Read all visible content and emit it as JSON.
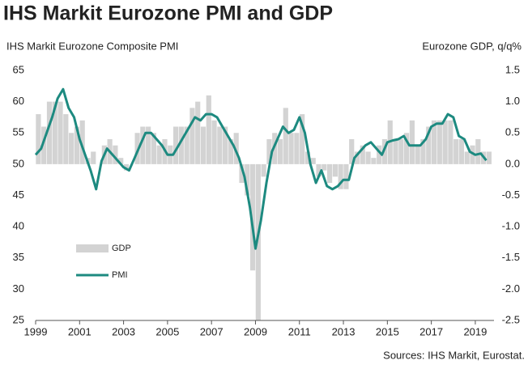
{
  "chart_data": {
    "type": "bar-line",
    "title": "IHS Markit Eurozone PMI and GDP",
    "ylabel": "IHS Markit Eurozone Composite PMI",
    "y2label": "Eurozone GDP, q/q%",
    "source": "Sources: IHS Markit, Eurostat.",
    "x": [
      1999,
      1999.25,
      1999.5,
      1999.75,
      2000,
      2000.25,
      2000.5,
      2000.75,
      2001,
      2001.25,
      2001.5,
      2001.75,
      2002,
      2002.25,
      2002.5,
      2002.75,
      2003,
      2003.25,
      2003.5,
      2003.75,
      2004,
      2004.25,
      2004.5,
      2004.75,
      2005,
      2005.25,
      2005.5,
      2005.75,
      2006,
      2006.25,
      2006.5,
      2006.75,
      2007,
      2007.25,
      2007.5,
      2007.75,
      2008,
      2008.25,
      2008.5,
      2008.75,
      2009,
      2009.25,
      2009.5,
      2009.75,
      2010,
      2010.25,
      2010.5,
      2010.75,
      2011,
      2011.25,
      2011.5,
      2011.75,
      2012,
      2012.25,
      2012.5,
      2012.75,
      2013,
      2013.25,
      2013.5,
      2013.75,
      2014,
      2014.25,
      2014.5,
      2014.75,
      2015,
      2015.25,
      2015.5,
      2015.75,
      2016,
      2016.25,
      2016.5,
      2016.75,
      2017,
      2017.25,
      2017.5,
      2017.75,
      2018,
      2018.25,
      2018.5,
      2018.75,
      2019,
      2019.25,
      2019.5
    ],
    "series": [
      {
        "name": "GDP",
        "type": "bar",
        "axis": "y2",
        "color": "#d3d3d3",
        "values": [
          0.8,
          0.6,
          1.0,
          1.0,
          1.0,
          0.8,
          0.5,
          0.6,
          0.7,
          0.1,
          0.2,
          0.0,
          0.3,
          0.4,
          0.3,
          0.1,
          -0.1,
          0.0,
          0.5,
          0.6,
          0.6,
          0.5,
          0.3,
          0.4,
          0.3,
          0.6,
          0.6,
          0.6,
          0.9,
          1.0,
          0.6,
          1.1,
          0.7,
          0.6,
          0.6,
          0.4,
          0.5,
          -0.3,
          -0.5,
          -1.7,
          -2.5,
          -0.2,
          0.4,
          0.5,
          0.4,
          0.9,
          0.5,
          0.5,
          0.8,
          0.2,
          0.1,
          -0.2,
          -0.1,
          -0.3,
          -0.2,
          -0.4,
          -0.4,
          0.4,
          0.2,
          0.3,
          0.2,
          0.1,
          0.3,
          0.4,
          0.7,
          0.4,
          0.4,
          0.5,
          0.7,
          0.3,
          0.4,
          0.6,
          0.7,
          0.7,
          0.7,
          0.7,
          0.4,
          0.4,
          0.2,
          0.3,
          0.4,
          0.2,
          0.2
        ]
      },
      {
        "name": "PMI",
        "type": "line",
        "color": "#1d8a80",
        "values": [
          51.5,
          52.5,
          55,
          57.5,
          60.5,
          62,
          59,
          57.5,
          54,
          51.5,
          49,
          46,
          50.5,
          52.5,
          51.5,
          50.5,
          49.5,
          49,
          51,
          53,
          55,
          55,
          54,
          53,
          51.5,
          51.5,
          53,
          54.5,
          56,
          57.5,
          57,
          58,
          58,
          57.5,
          56,
          54.5,
          53,
          51,
          48,
          43,
          36.5,
          41,
          47,
          52,
          54,
          56,
          55,
          55.5,
          57.5,
          55,
          50,
          47,
          49,
          46.5,
          46,
          46.5,
          47.5,
          47.5,
          51,
          52,
          53,
          53.5,
          52.5,
          51.5,
          53.5,
          53.8,
          54,
          54.5,
          53,
          53,
          53,
          54,
          56,
          56.5,
          56.5,
          58,
          57.5,
          54.5,
          54,
          52,
          51.5,
          51.7,
          50.6
        ]
      }
    ],
    "xlim": [
      1999,
      2019.85
    ],
    "xticks": [
      1999,
      2001,
      2003,
      2005,
      2007,
      2009,
      2011,
      2013,
      2015,
      2017,
      2019
    ],
    "ylim": [
      25,
      65
    ],
    "yticks": [
      25,
      30,
      35,
      40,
      45,
      50,
      55,
      60,
      65
    ],
    "y2lim": [
      -2.5,
      1.5
    ],
    "y2ticks": [
      -2.5,
      {
        "value": -2,
        "label": "-2.0"
      },
      -1.5,
      {
        "value": -1,
        "label": "-1.0"
      },
      -0.5,
      {
        "value": 0,
        "label": "0.0"
      },
      0.5,
      {
        "value": 1,
        "label": "1.0"
      },
      1.5
    ],
    "legend": "lower left"
  }
}
